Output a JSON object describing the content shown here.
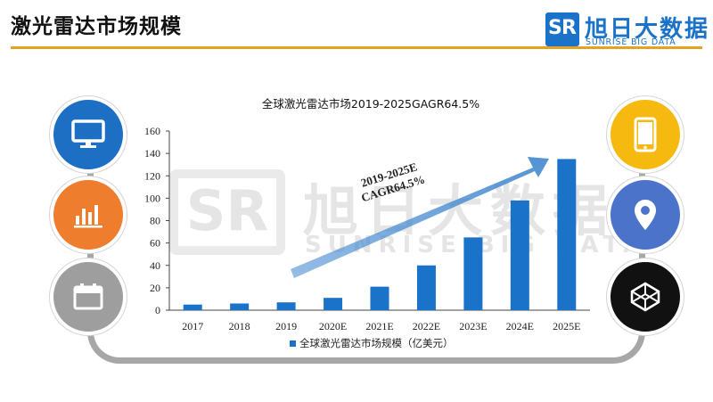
{
  "header": {
    "title": "激光雷达市场规模"
  },
  "logo": {
    "cn": "旭日大数据",
    "en": "SUNRISE BIG DATA",
    "mark": "SR",
    "brand_color": "#1a73c8"
  },
  "watermark": {
    "cn": "旭日大数据",
    "en": "SUNRISE BIG DATA",
    "mark": "SR"
  },
  "side_icons": [
    {
      "icon": "monitor-icon",
      "color": "#1c6fc2"
    },
    {
      "icon": "bar-chart-icon",
      "color": "#ef7d2e"
    },
    {
      "icon": "calendar-icon",
      "color": "#9e9e9e"
    },
    {
      "icon": "phone-icon",
      "color": "#f5b90f"
    },
    {
      "icon": "location-pin-icon",
      "color": "#4b73c9"
    },
    {
      "icon": "code-cube-icon",
      "color": "#111111"
    }
  ],
  "chart_data": {
    "type": "bar",
    "title": "全球激光雷达市场2019-2025GAGR64.5%",
    "categories": [
      "2017",
      "2018",
      "2019",
      "2020E",
      "2021E",
      "2022E",
      "2023E",
      "2024E",
      "2025E"
    ],
    "series": [
      {
        "name": "全球激光雷达市场规模（亿美元）",
        "values": [
          5,
          6,
          7,
          11,
          21,
          40,
          65,
          98,
          135
        ]
      }
    ],
    "ylim": [
      0,
      160
    ],
    "yticks": [
      0,
      20,
      40,
      60,
      80,
      100,
      120,
      140,
      160
    ],
    "annotation": [
      "2019-2025E",
      "CAGR64.5%"
    ],
    "legend_position": "bottom",
    "bar_color": "#1a73c8",
    "grid": false
  }
}
